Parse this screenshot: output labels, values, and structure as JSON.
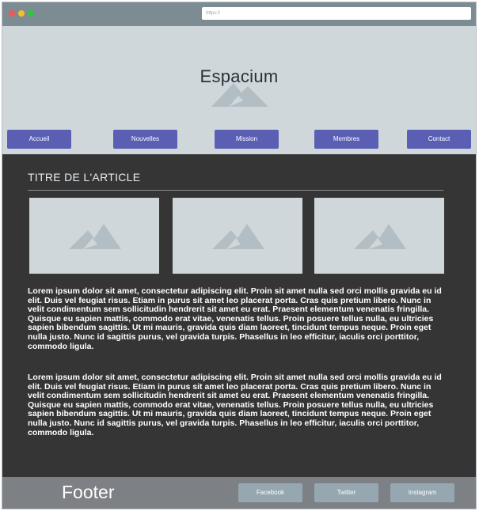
{
  "browser": {
    "address": "https://"
  },
  "header": {
    "title": "Espacium",
    "nav": [
      "Accueil",
      "Nouvelles",
      "Mission",
      "Membres",
      "Contact"
    ]
  },
  "article": {
    "title": "TITRE DE L'ARTICLE",
    "paragraphs": [
      "Lorem ipsum dolor sit amet, consectetur adipiscing elit. Proin sit amet nulla sed orci mollis gravida eu id elit. Duis vel feugiat risus. Etiam in purus sit amet leo placerat porta. Cras quis pretium libero. Nunc in velit condimentum sem sollicitudin hendrerit sit amet eu erat. Praesent elementum venenatis fringilla. Quisque eu sapien mattis, commodo erat vitae, venenatis tellus. Proin posuere tellus nulla, eu ultricies sapien bibendum sagittis. Ut mi mauris, gravida quis diam laoreet, tincidunt tempus neque. Proin eget nulla justo. Nunc id sagittis purus, vel gravida turpis. Phasellus in leo efficitur, iaculis orci porttitor, commodo ligula.",
      "Lorem ipsum dolor sit amet, consectetur adipiscing elit. Proin sit amet nulla sed orci mollis gravida eu id elit. Duis vel feugiat risus. Etiam in purus sit amet leo placerat porta. Cras quis pretium libero. Nunc in velit condimentum sem sollicitudin hendrerit sit amet eu erat. Praesent elementum venenatis fringilla. Quisque eu sapien mattis, commodo erat vitae, venenatis tellus. Proin posuere tellus nulla, eu ultricies sapien bibendum sagittis. Ut mi mauris, gravida quis diam laoreet, tincidunt tempus neque. Proin eget nulla justo. Nunc id sagittis purus, vel gravida turpis. Phasellus in leo efficitur, iaculis orci porttitor, commodo ligula."
    ]
  },
  "footer": {
    "title": "Footer",
    "links": [
      "Facebook",
      "Twitter",
      "Instagram"
    ]
  },
  "colors": {
    "chrome": "#7d8c93",
    "header_bg": "#cfd7db",
    "nav_button": "#5b5fb4",
    "main_bg": "#353535",
    "footer_bg": "#7d8084",
    "footer_button": "#95a7b0"
  },
  "icons": [
    "window-close-dot",
    "window-minimize-dot",
    "window-maximize-dot",
    "image-placeholder-icon"
  ]
}
